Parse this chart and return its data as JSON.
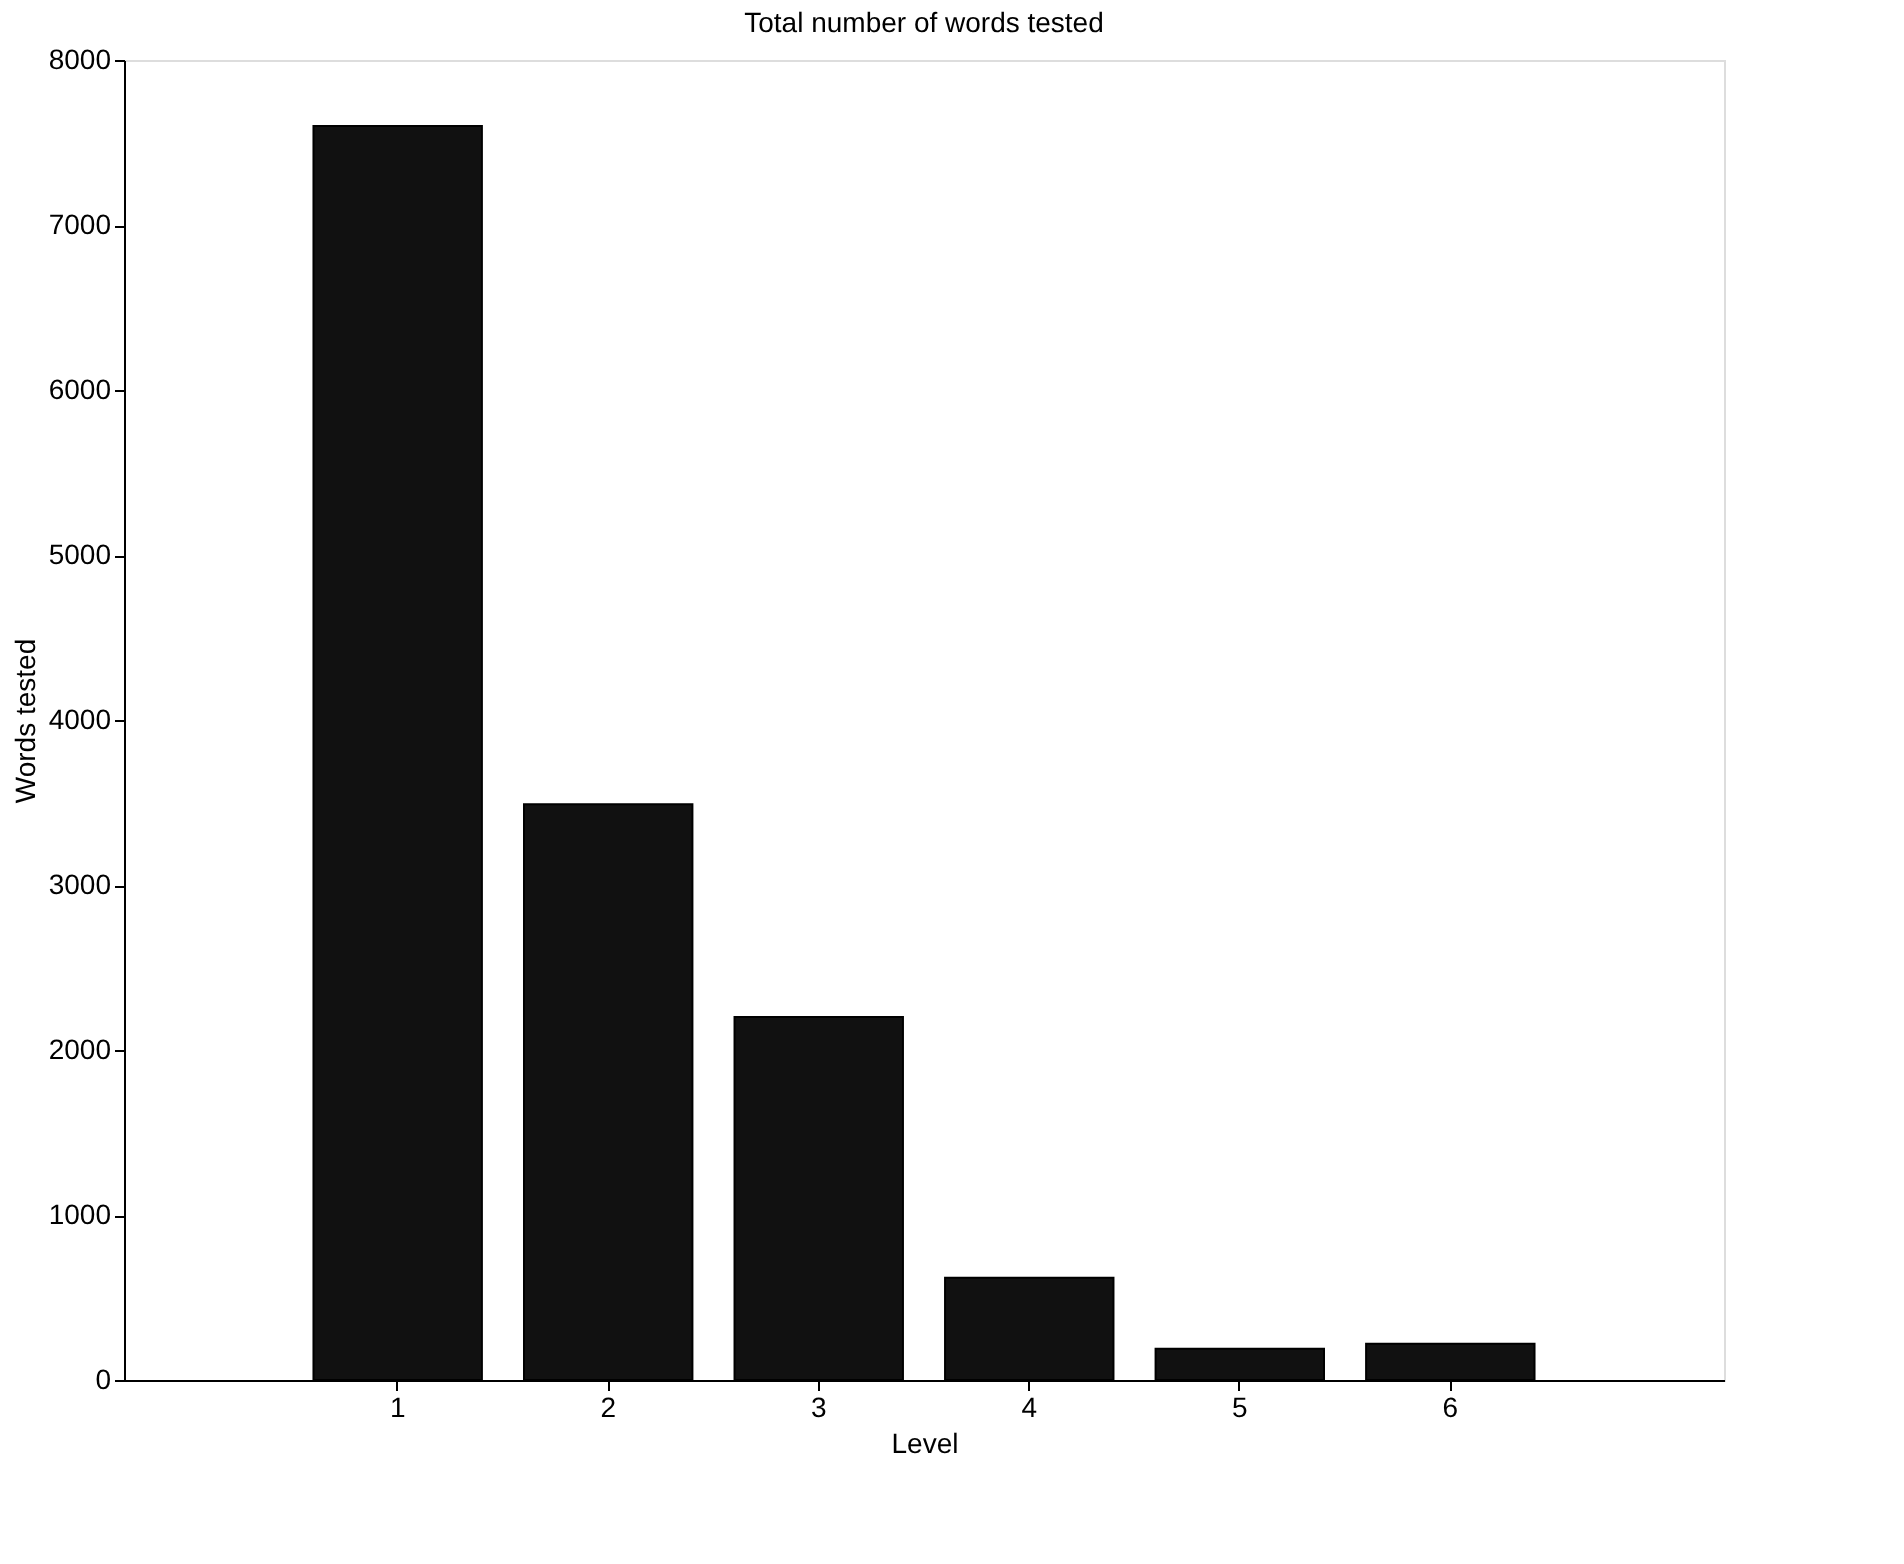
{
  "chart_data": {
    "type": "bar",
    "title": "Total number of words tested",
    "xlabel": "Level",
    "ylabel": "Words tested",
    "categories": [
      "1",
      "2",
      "3",
      "4",
      "5",
      "6"
    ],
    "values": [
      7600,
      3490,
      2200,
      620,
      190,
      220
    ],
    "color": "#111111",
    "ylim": [
      0,
      8000
    ],
    "yticks": [
      0,
      1000,
      2000,
      3000,
      4000,
      5000,
      6000,
      7000,
      8000
    ],
    "grid": false
  }
}
